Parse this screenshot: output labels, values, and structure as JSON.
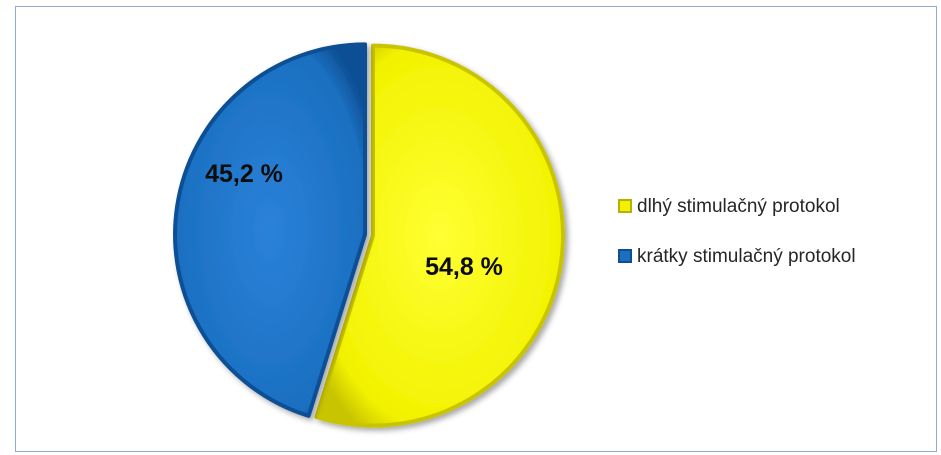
{
  "chart_data": {
    "type": "pie",
    "title": "",
    "slices": [
      {
        "label": "dlhý stimulačný protokol",
        "value": 54.8,
        "display": "54,8 %",
        "color": "#f2f200"
      },
      {
        "label": "krátky stimulačný protokol",
        "value": 45.2,
        "display": "45,2 %",
        "color": "#1b6fc0"
      }
    ],
    "legend_position": "right",
    "start_angle": "12 o'clock",
    "direction": "clockwise"
  }
}
